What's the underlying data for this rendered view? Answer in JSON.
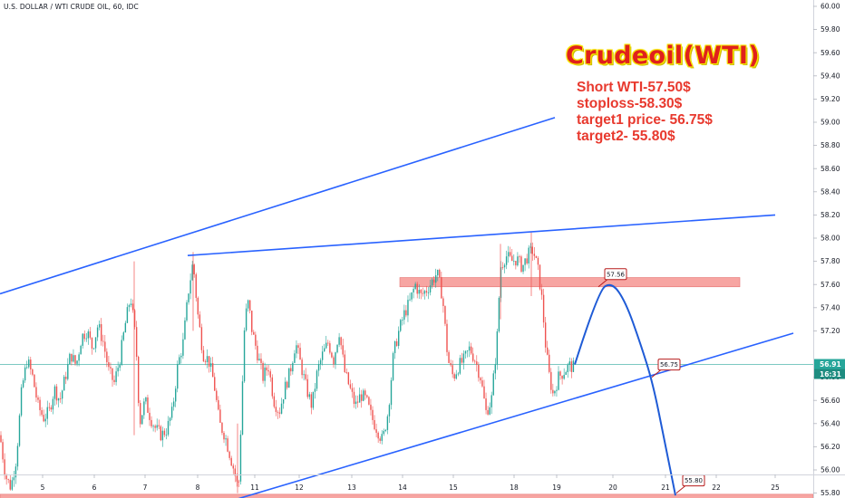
{
  "symbol_label": "U.S. DOLLAR / WTI CRUDE OIL, 60, IDC",
  "title": "Crudeoil(WTI)",
  "notes": [
    "Short WTI-57.50$",
    "stoploss-58.30$",
    "target1 price- 56.75$",
    "target2- 55.80$"
  ],
  "chart_data": {
    "type": "line",
    "chart_style": "candlestick",
    "x_tick_labels": [
      "5",
      "6",
      "7",
      "8",
      "11",
      "12",
      "13",
      "14",
      "15",
      "18",
      "19",
      "20",
      "21",
      "22",
      "25"
    ],
    "y_tick_labels": [
      "60.00",
      "59.80",
      "59.60",
      "59.40",
      "59.20",
      "59.00",
      "58.80",
      "58.60",
      "58.40",
      "58.20",
      "58.00",
      "57.80",
      "57.60",
      "57.40",
      "57.20",
      "56.80",
      "56.60",
      "56.40",
      "56.20",
      "56.00",
      "55.80",
      "55.60"
    ],
    "ylim": [
      55.55,
      60.05
    ],
    "grid": false,
    "current_price": {
      "label": "56.91",
      "value": 56.91,
      "color": "#26a69a"
    },
    "countdown_label": "16:31",
    "candle_colors": {
      "up": "#26a69a",
      "down": "#ef5350"
    },
    "price_path": [
      [
        0,
        56.3
      ],
      [
        6,
        55.95
      ],
      [
        12,
        55.85
      ],
      [
        18,
        56.1
      ],
      [
        24,
        56.7
      ],
      [
        30,
        56.95
      ],
      [
        36,
        56.8
      ],
      [
        42,
        56.55
      ],
      [
        48,
        56.45
      ],
      [
        54,
        56.5
      ],
      [
        60,
        56.7
      ],
      [
        66,
        56.6
      ],
      [
        72,
        56.8
      ],
      [
        78,
        57.0
      ],
      [
        84,
        56.9
      ],
      [
        90,
        57.15
      ],
      [
        96,
        57.2
      ],
      [
        102,
        57.05
      ],
      [
        108,
        57.25
      ],
      [
        114,
        57.1
      ],
      [
        120,
        56.85
      ],
      [
        126,
        56.75
      ],
      [
        132,
        56.95
      ],
      [
        138,
        57.25
      ],
      [
        144,
        57.5
      ],
      [
        150,
        57.1
      ],
      [
        154,
        56.4
      ],
      [
        160,
        56.6
      ],
      [
        166,
        56.45
      ],
      [
        172,
        56.35
      ],
      [
        178,
        56.3
      ],
      [
        184,
        56.35
      ],
      [
        190,
        56.5
      ],
      [
        196,
        56.9
      ],
      [
        202,
        57.1
      ],
      [
        208,
        57.55
      ],
      [
        213,
        57.8
      ],
      [
        218,
        57.35
      ],
      [
        224,
        57.0
      ],
      [
        230,
        56.95
      ],
      [
        236,
        56.75
      ],
      [
        242,
        56.4
      ],
      [
        248,
        56.3
      ],
      [
        253,
        56.15
      ],
      [
        258,
        56.0
      ],
      [
        263,
        55.82
      ],
      [
        266,
        56.45
      ],
      [
        270,
        57.3
      ],
      [
        274,
        57.45
      ],
      [
        278,
        57.2
      ],
      [
        284,
        57.0
      ],
      [
        290,
        56.8
      ],
      [
        296,
        56.9
      ],
      [
        302,
        56.6
      ],
      [
        308,
        56.5
      ],
      [
        314,
        56.7
      ],
      [
        320,
        56.85
      ],
      [
        326,
        57.1
      ],
      [
        332,
        56.9
      ],
      [
        338,
        56.7
      ],
      [
        344,
        56.55
      ],
      [
        350,
        56.85
      ],
      [
        356,
        57.0
      ],
      [
        362,
        57.1
      ],
      [
        368,
        56.95
      ],
      [
        374,
        57.2
      ],
      [
        380,
        56.85
      ],
      [
        386,
        56.7
      ],
      [
        392,
        56.55
      ],
      [
        398,
        56.65
      ],
      [
        404,
        56.6
      ],
      [
        410,
        56.45
      ],
      [
        416,
        56.35
      ],
      [
        422,
        56.25
      ],
      [
        428,
        56.5
      ],
      [
        434,
        57.0
      ],
      [
        440,
        57.2
      ],
      [
        446,
        57.35
      ],
      [
        452,
        57.45
      ],
      [
        458,
        57.6
      ],
      [
        464,
        57.5
      ],
      [
        470,
        57.55
      ],
      [
        476,
        57.62
      ],
      [
        482,
        57.7
      ],
      [
        488,
        57.5
      ],
      [
        494,
        56.95
      ],
      [
        500,
        56.8
      ],
      [
        506,
        56.9
      ],
      [
        512,
        56.95
      ],
      [
        518,
        57.05
      ],
      [
        524,
        56.95
      ],
      [
        530,
        56.8
      ],
      [
        536,
        56.5
      ],
      [
        542,
        56.6
      ],
      [
        548,
        57.1
      ],
      [
        552,
        57.75
      ],
      [
        558,
        57.85
      ],
      [
        564,
        57.8
      ],
      [
        570,
        57.82
      ],
      [
        576,
        57.75
      ],
      [
        582,
        57.85
      ],
      [
        588,
        57.9
      ],
      [
        594,
        57.7
      ],
      [
        598,
        57.45
      ],
      [
        602,
        57.05
      ],
      [
        606,
        56.8
      ],
      [
        610,
        56.65
      ],
      [
        616,
        56.8
      ],
      [
        622,
        56.85
      ],
      [
        628,
        56.9
      ],
      [
        634,
        56.88
      ]
    ],
    "drawings": {
      "trendlines": [
        {
          "from": [
            0,
            57.52
          ],
          "to": [
            612,
            59.04
          ],
          "color": "#2962ff"
        },
        {
          "from": [
            207,
            57.85
          ],
          "to": [
            855,
            58.2
          ],
          "color": "#2962ff"
        },
        {
          "from": [
            262,
            55.75
          ],
          "to": [
            875,
            57.18
          ],
          "color": "#2962ff"
        }
      ],
      "zones": [
        {
          "x_from": 441,
          "x_to": 816,
          "price_top": 57.66,
          "price_bottom": 57.58,
          "color": "#f7a5a2"
        },
        {
          "x_from": 0,
          "x_to": 897,
          "price_top": 55.79,
          "price_bottom": 55.65,
          "color": "#f7a5a2"
        }
      ],
      "projection": {
        "color": "#1f5bd6",
        "points": [
          [
            634,
            56.91
          ],
          [
            660,
            57.55
          ],
          [
            675,
            57.62
          ],
          [
            690,
            57.45
          ],
          [
            706,
            57.1
          ],
          [
            720,
            56.75
          ],
          [
            733,
            56.25
          ],
          [
            745,
            55.78
          ]
        ]
      },
      "callouts": [
        {
          "label": "57.56",
          "x": 660,
          "price": 57.58
        },
        {
          "label": "56.75",
          "x": 719,
          "price": 56.8
        },
        {
          "label": "55.80",
          "x": 746,
          "price": 55.8
        }
      ]
    }
  }
}
